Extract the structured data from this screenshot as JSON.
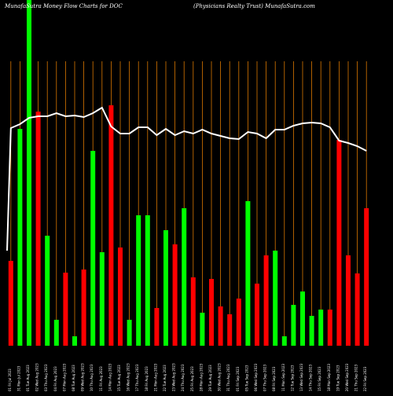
{
  "header": {
    "left": "MunafaSutra  Money Flow  Charts for DOC",
    "right": "(Physicians Realty Trust) MunafaSutra.com"
  },
  "chart_data": {
    "type": "bar",
    "grid": true,
    "colors": {
      "background": "#000000",
      "up": "#00ff00",
      "down": "#ff0000",
      "line": "#ffffff",
      "grid": "#ff8c00"
    },
    "categories": [
      "01 Fri Jul 2023",
      "31 Mon Jul 2023",
      "01 Tue Aug 2023",
      "02 Wed Aug 2023",
      "03 Thu Aug 2023",
      "04 Fri Aug 2023",
      "07 Mon Aug 2023",
      "08 Tue Aug 2023",
      "09 Wed Aug 2023",
      "10 Thu Aug 2023",
      "11 Fri Aug 2023",
      "14 Mon Aug 2023",
      "15 Tue Aug 2023",
      "16 Wed Aug 2023",
      "17 Thu Aug 2023",
      "18 Fri Aug 2023",
      "21 Mon Aug 2023",
      "22 Tue Aug 2023",
      "23 Wed Aug 2023",
      "24 Thu Aug 2023",
      "25 Fri Aug 2023",
      "28 Mon Aug 2023",
      "29 Tue Aug 2023",
      "30 Wed Aug 2023",
      "31 Thu Aug 2023",
      "01 Fri Sep 2023",
      "05 Tue Sep 2023",
      "06 Wed Sep 2023",
      "07 Thu Sep 2023",
      "08 Fri Sep 2023",
      "11 Mon Sep 2023",
      "12 Tue Sep 2023",
      "13 Wed Sep 2023",
      "14 Thu Sep 2023",
      "15 Fri Sep 2023",
      "18 Mon Sep 2023",
      "19 Tue Sep 2023",
      "20 Wed Sep 2023",
      "21 Thu Sep 2023",
      "22 Fri Sep 2023"
    ],
    "bars": [
      {
        "value": 108,
        "dir": "down"
      },
      {
        "value": 276,
        "dir": "up"
      },
      {
        "value": 440,
        "dir": "up"
      },
      {
        "value": 298,
        "dir": "down"
      },
      {
        "value": 140,
        "dir": "up"
      },
      {
        "value": 33,
        "dir": "up"
      },
      {
        "value": 93,
        "dir": "down"
      },
      {
        "value": 12,
        "dir": "up"
      },
      {
        "value": 97,
        "dir": "down"
      },
      {
        "value": 248,
        "dir": "up"
      },
      {
        "value": 119,
        "dir": "up"
      },
      {
        "value": 306,
        "dir": "down"
      },
      {
        "value": 125,
        "dir": "down"
      },
      {
        "value": 33,
        "dir": "up"
      },
      {
        "value": 166,
        "dir": "up"
      },
      {
        "value": 166,
        "dir": "up"
      },
      {
        "value": 48,
        "dir": "down"
      },
      {
        "value": 147,
        "dir": "up"
      },
      {
        "value": 129,
        "dir": "down"
      },
      {
        "value": 175,
        "dir": "up"
      },
      {
        "value": 87,
        "dir": "down"
      },
      {
        "value": 42,
        "dir": "up"
      },
      {
        "value": 85,
        "dir": "down"
      },
      {
        "value": 50,
        "dir": "down"
      },
      {
        "value": 40,
        "dir": "down"
      },
      {
        "value": 60,
        "dir": "down"
      },
      {
        "value": 184,
        "dir": "up"
      },
      {
        "value": 79,
        "dir": "down"
      },
      {
        "value": 115,
        "dir": "down"
      },
      {
        "value": 121,
        "dir": "up"
      },
      {
        "value": 12,
        "dir": "up"
      },
      {
        "value": 52,
        "dir": "up"
      },
      {
        "value": 69,
        "dir": "up"
      },
      {
        "value": 38,
        "dir": "up"
      },
      {
        "value": 46,
        "dir": "up"
      },
      {
        "value": 46,
        "dir": "down"
      },
      {
        "value": 262,
        "dir": "down"
      },
      {
        "value": 115,
        "dir": "down"
      },
      {
        "value": 92,
        "dir": "down"
      },
      {
        "value": 175,
        "dir": "down"
      }
    ],
    "line": [
      {
        "i": 0,
        "y": 277
      },
      {
        "i": 1,
        "y": 282
      },
      {
        "i": 2,
        "y": 290
      },
      {
        "i": 3,
        "y": 292
      },
      {
        "i": 4,
        "y": 292
      },
      {
        "i": 5,
        "y": 296
      },
      {
        "i": 6,
        "y": 292
      },
      {
        "i": 7,
        "y": 293
      },
      {
        "i": 8,
        "y": 291
      },
      {
        "i": 9,
        "y": 296
      },
      {
        "i": 10,
        "y": 303
      },
      {
        "i": 11,
        "y": 279
      },
      {
        "i": 12,
        "y": 270
      },
      {
        "i": 13,
        "y": 270
      },
      {
        "i": 14,
        "y": 278
      },
      {
        "i": 15,
        "y": 278
      },
      {
        "i": 16,
        "y": 268
      },
      {
        "i": 17,
        "y": 276
      },
      {
        "i": 18,
        "y": 268
      },
      {
        "i": 19,
        "y": 273
      },
      {
        "i": 20,
        "y": 270
      },
      {
        "i": 21,
        "y": 275
      },
      {
        "i": 22,
        "y": 270
      },
      {
        "i": 23,
        "y": 267
      },
      {
        "i": 24,
        "y": 264
      },
      {
        "i": 25,
        "y": 263
      },
      {
        "i": 26,
        "y": 272
      },
      {
        "i": 27,
        "y": 270
      },
      {
        "i": 28,
        "y": 264
      },
      {
        "i": 29,
        "y": 275
      },
      {
        "i": 30,
        "y": 275
      },
      {
        "i": 31,
        "y": 280
      },
      {
        "i": 32,
        "y": 283
      },
      {
        "i": 33,
        "y": 284
      },
      {
        "i": 34,
        "y": 283
      },
      {
        "i": 35,
        "y": 278
      },
      {
        "i": 36,
        "y": 261
      },
      {
        "i": 37,
        "y": 258
      },
      {
        "i": 38,
        "y": 254
      },
      {
        "i": 39,
        "y": 248
      }
    ],
    "start_point": {
      "x": 0,
      "y": 121
    },
    "ylim": [
      0,
      440
    ]
  }
}
